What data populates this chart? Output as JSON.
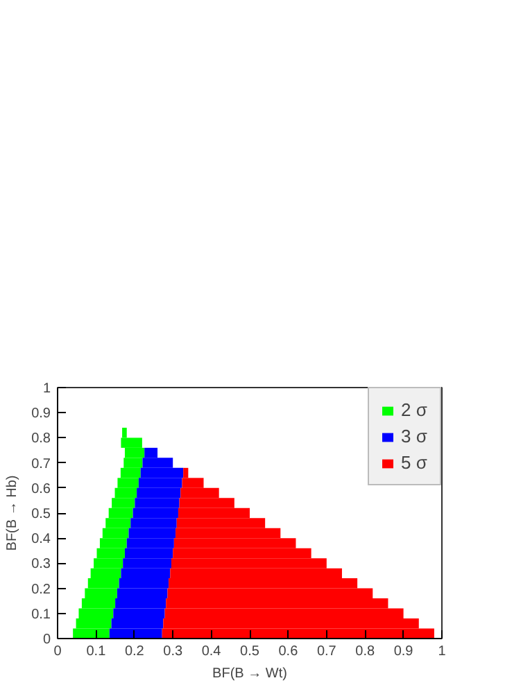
{
  "chart_data": {
    "type": "bar",
    "orientation": "horizontal",
    "xlabel": "BF(B → Wt)",
    "ylabel": "BF(B → Hb)",
    "x": [
      0.02,
      0.06,
      0.1,
      0.14,
      0.18,
      0.22,
      0.26,
      0.3,
      0.34,
      0.38,
      0.42,
      0.46,
      0.5,
      0.54,
      0.58,
      0.62,
      0.66,
      0.7,
      0.74,
      0.78,
      0.82
    ],
    "series": [
      {
        "name": "2 σ",
        "color": "#00ff00",
        "base": [
          0.04,
          0.048,
          0.055,
          0.063,
          0.071,
          0.079,
          0.086,
          0.094,
          0.102,
          0.11,
          0.117,
          0.125,
          0.133,
          0.141,
          0.149,
          0.156,
          0.164,
          0.172,
          0.175,
          0.165,
          0.168
        ],
        "values": [
          0.095,
          0.092,
          0.09,
          0.087,
          0.084,
          0.081,
          0.079,
          0.076,
          0.073,
          0.07,
          0.068,
          0.065,
          0.063,
          0.06,
          0.057,
          0.055,
          0.052,
          0.049,
          0.051,
          0.055,
          0.012
        ]
      },
      {
        "name": "3 σ",
        "color": "#0000ff",
        "base": [
          0.135,
          0.14,
          0.145,
          0.15,
          0.155,
          0.16,
          0.165,
          0.17,
          0.175,
          0.18,
          0.185,
          0.19,
          0.196,
          0.201,
          0.206,
          0.211,
          0.216,
          0.221,
          0.226,
          null,
          null
        ],
        "values": [
          0.137,
          0.135,
          0.134,
          0.132,
          0.131,
          0.129,
          0.128,
          0.126,
          0.125,
          0.123,
          0.122,
          0.12,
          0.118,
          0.116,
          0.114,
          0.113,
          0.111,
          0.079,
          0.034,
          null,
          null
        ]
      },
      {
        "name": "5 σ",
        "color": "#ff0000",
        "base": [
          0.272,
          0.275,
          0.279,
          0.282,
          0.286,
          0.289,
          0.293,
          0.296,
          0.3,
          0.303,
          0.307,
          0.31,
          0.314,
          0.317,
          0.32,
          0.324,
          0.327,
          null,
          null,
          null,
          null
        ],
        "values": [
          0.708,
          0.665,
          0.621,
          0.578,
          0.534,
          0.491,
          0.447,
          0.404,
          0.36,
          0.317,
          0.273,
          0.23,
          0.186,
          0.143,
          0.1,
          0.056,
          0.013,
          null,
          null,
          null,
          null
        ]
      }
    ],
    "xlim": [
      0,
      1
    ],
    "ylim": [
      0,
      1
    ],
    "xticks": [
      0,
      0.1,
      0.2,
      0.3,
      0.4,
      0.5,
      0.6,
      0.7,
      0.8,
      0.9,
      1
    ],
    "yticks": [
      0,
      0.1,
      0.2,
      0.3,
      0.4,
      0.5,
      0.6,
      0.7,
      0.8,
      0.9,
      1
    ],
    "grid": false,
    "legend": "top right"
  }
}
